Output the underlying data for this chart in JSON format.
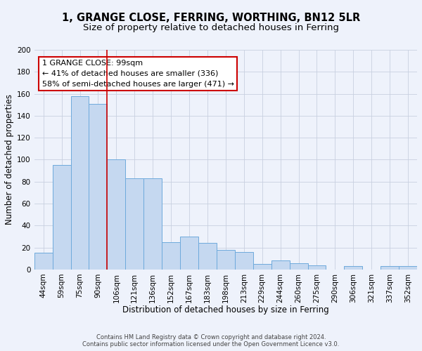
{
  "title1": "1, GRANGE CLOSE, FERRING, WORTHING, BN12 5LR",
  "title2": "Size of property relative to detached houses in Ferring",
  "xlabel": "Distribution of detached houses by size in Ferring",
  "ylabel": "Number of detached properties",
  "categories": [
    "44sqm",
    "59sqm",
    "75sqm",
    "90sqm",
    "106sqm",
    "121sqm",
    "136sqm",
    "152sqm",
    "167sqm",
    "183sqm",
    "198sqm",
    "213sqm",
    "229sqm",
    "244sqm",
    "260sqm",
    "275sqm",
    "290sqm",
    "306sqm",
    "321sqm",
    "337sqm",
    "352sqm"
  ],
  "values": [
    15,
    95,
    158,
    151,
    100,
    83,
    83,
    25,
    30,
    24,
    18,
    16,
    5,
    8,
    6,
    4,
    0,
    3,
    0,
    3,
    3
  ],
  "bar_color": "#c5d8f0",
  "bar_edge_color": "#6eaadc",
  "ylim": [
    0,
    200
  ],
  "yticks": [
    0,
    20,
    40,
    60,
    80,
    100,
    120,
    140,
    160,
    180,
    200
  ],
  "annotation_line1": "1 GRANGE CLOSE: 99sqm",
  "annotation_line2": "← 41% of detached houses are smaller (336)",
  "annotation_line3": "58% of semi-detached houses are larger (471) →",
  "red_line_index": 3.5,
  "footer1": "Contains HM Land Registry data © Crown copyright and database right 2024.",
  "footer2": "Contains public sector information licensed under the Open Government Licence v3.0.",
  "background_color": "#eef2fb",
  "plot_bg_color": "#eef2fb",
  "grid_color": "#c8d0e0",
  "annotation_box_color": "#ffffff",
  "annotation_border_color": "#cc0000",
  "title_fontsize": 10.5,
  "subtitle_fontsize": 9.5,
  "xlabel_fontsize": 8.5,
  "ylabel_fontsize": 8.5,
  "tick_fontsize": 7.5,
  "annotation_fontsize": 8.0,
  "footer_fontsize": 6.0
}
